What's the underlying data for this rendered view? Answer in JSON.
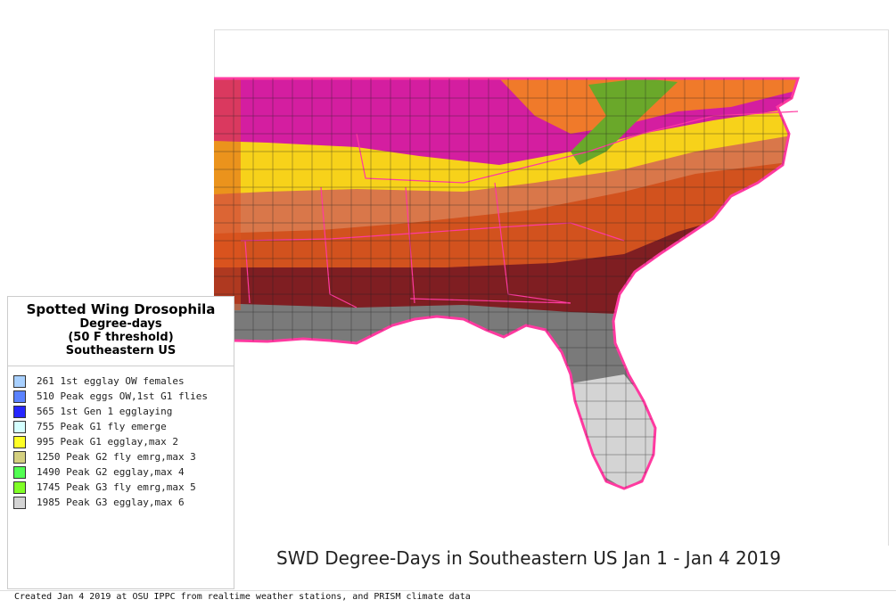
{
  "legend": {
    "title": "Spotted Wing Drosophila",
    "subtitle1": "Degree-days",
    "subtitle2": "(50 F threshold)",
    "region": "Southeastern US",
    "items": [
      {
        "label": "261 1st egglay OW females",
        "color": "#a8d0ff"
      },
      {
        "label": "510 Peak eggs OW,1st G1 flies",
        "color": "#5a82ff"
      },
      {
        "label": "565 1st Gen 1 egglaying",
        "color": "#2626ff"
      },
      {
        "label": "755 Peak G1 fly emerge",
        "color": "#d4ffff"
      },
      {
        "label": "995 Peak G1 egglay,max 2",
        "color": "#ffff26"
      },
      {
        "label": "1250 Peak G2 fly emrg,max 3",
        "color": "#d4d080"
      },
      {
        "label": "1490 Peak G2 egglay,max 4",
        "color": "#52ff52"
      },
      {
        "label": "1745 Peak G3 fly emrg,max 5",
        "color": "#80ff26"
      },
      {
        "label": "1985 Peak G3 egglay,max 6",
        "color": "#d4d4d4"
      }
    ]
  },
  "map_title": "SWD Degree-Days in Southeastern US Jan 1 - Jan 4 2019",
  "footer": "Created Jan 4 2019 at OSU IPPC from  realtime weather stations, and PRISM climate data"
}
